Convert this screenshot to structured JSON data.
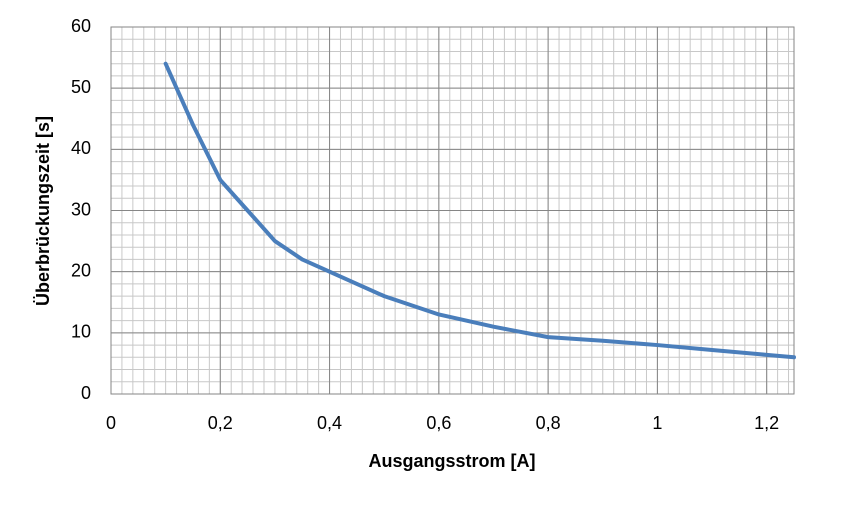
{
  "chart_data": {
    "type": "line",
    "x_label": "Ausgangsstrom  [A]",
    "y_label": "Überbrückungszeit  [s]",
    "x": [
      0.1,
      0.15,
      0.2,
      0.25,
      0.3,
      0.35,
      0.4,
      0.5,
      0.6,
      0.7,
      0.8,
      0.9,
      1.0,
      1.1,
      1.2,
      1.25
    ],
    "series": [
      {
        "color": "#4a7ebb",
        "values": [
          54,
          44,
          35,
          30,
          25,
          22,
          20,
          16,
          13,
          11,
          9.3,
          8.7,
          8,
          7.2,
          6.4,
          6
        ]
      }
    ],
    "xlim": [
      0,
      1.25
    ],
    "xticks": [
      0,
      {
        "value": 0.2,
        "label": "0,2"
      },
      {
        "value": 0.4,
        "label": "0,4"
      },
      {
        "value": 0.6,
        "label": "0,6"
      },
      {
        "value": 0.8,
        "label": "0,8"
      },
      1,
      {
        "value": 1.2,
        "label": "1,2"
      }
    ],
    "ylim": [
      0,
      60
    ],
    "yticks": [
      0,
      10,
      20,
      30,
      40,
      50,
      60
    ],
    "grid": true,
    "minor_grid": {
      "x": 10,
      "y": 5
    }
  }
}
